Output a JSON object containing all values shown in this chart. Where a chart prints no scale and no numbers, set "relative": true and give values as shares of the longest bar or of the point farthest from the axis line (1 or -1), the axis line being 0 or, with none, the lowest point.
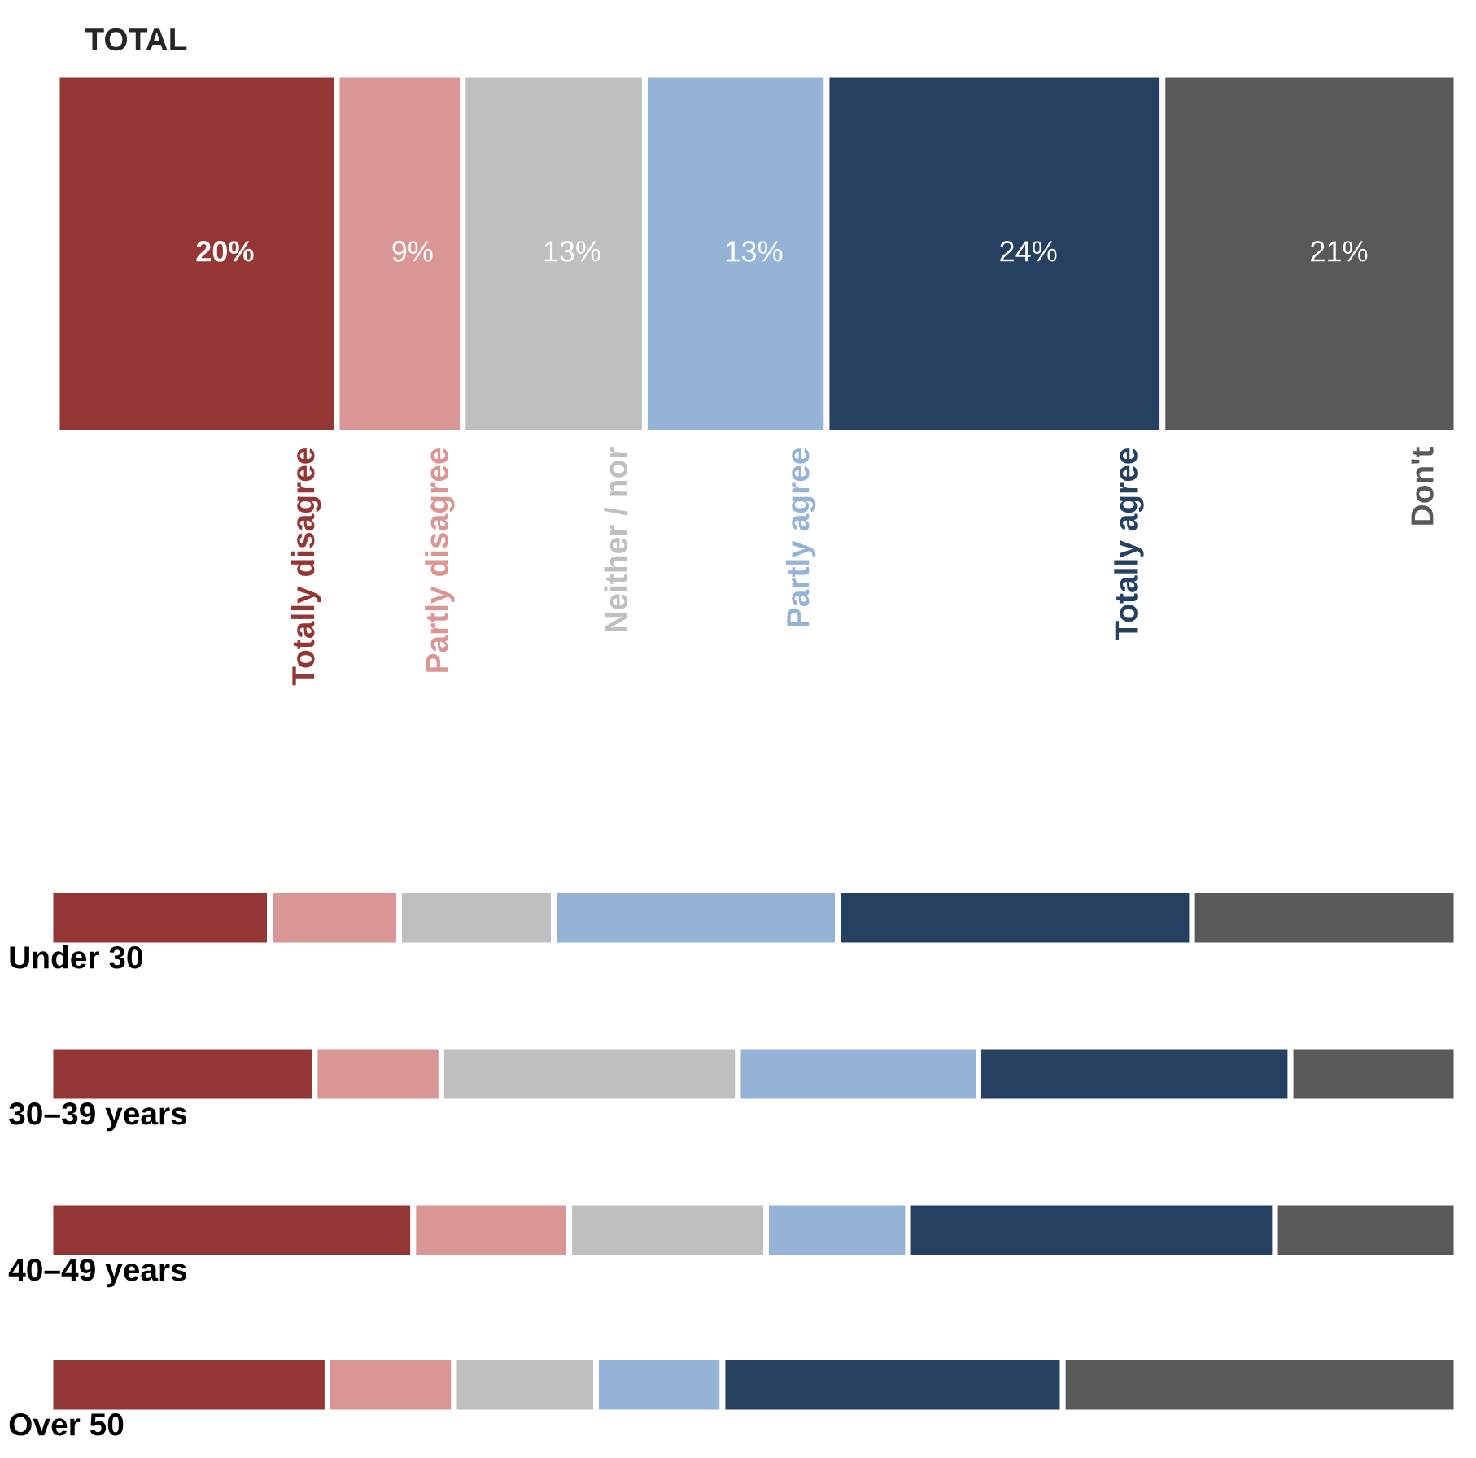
{
  "chart_data": [
    {
      "type": "bar",
      "title": "TOTAL",
      "orientation": "horizontal",
      "stacked": true,
      "tick_labels": false,
      "legend": false,
      "categories": [
        null
      ],
      "series": [
        {
          "name": "Totally disagree",
          "color": "#943634",
          "values": [
            20
          ],
          "value_labels": [
            "20%"
          ]
        },
        {
          "name": "Partly disagree",
          "color": "#da9694",
          "values": [
            9
          ],
          "value_labels": [
            "9%"
          ]
        },
        {
          "name": "Neither / nor",
          "color": "#bfbfbf",
          "values": [
            13
          ],
          "value_labels": [
            "13%"
          ]
        },
        {
          "name": "Partly agree",
          "color": "#95b3d7",
          "values": [
            13
          ],
          "value_labels": [
            "13%"
          ]
        },
        {
          "name": "Totally agree",
          "color": "#254061",
          "values": [
            24
          ],
          "value_labels": [
            "24%"
          ]
        },
        {
          "name": "Don't",
          "color": "#595959",
          "values": [
            21
          ],
          "value_labels": [
            "21%"
          ]
        }
      ]
    },
    {
      "type": "bar",
      "orientation": "horizontal",
      "stacked": true,
      "relative": true,
      "categories": [
        "Under 30"
      ],
      "series": [
        {
          "color": "#943634",
          "values": [
            0.156
          ]
        },
        {
          "color": "#da9694",
          "values": [
            0.092
          ]
        },
        {
          "color": "#bfbfbf",
          "values": [
            0.11
          ]
        },
        {
          "color": "#95b3d7",
          "values": [
            0.202
          ]
        },
        {
          "color": "#254061",
          "values": [
            0.252
          ]
        },
        {
          "color": "#595959",
          "values": [
            0.188
          ]
        }
      ]
    },
    {
      "type": "bar",
      "orientation": "horizontal",
      "stacked": true,
      "relative": true,
      "categories": [
        "30–39 years"
      ],
      "series": [
        {
          "color": "#943634",
          "values": [
            0.188
          ]
        },
        {
          "color": "#da9694",
          "values": [
            0.09
          ]
        },
        {
          "color": "#bfbfbf",
          "values": [
            0.211
          ]
        },
        {
          "color": "#95b3d7",
          "values": [
            0.171
          ]
        },
        {
          "color": "#254061",
          "values": [
            0.222
          ]
        },
        {
          "color": "#595959",
          "values": [
            0.118
          ]
        }
      ]
    },
    {
      "type": "bar",
      "orientation": "horizontal",
      "stacked": true,
      "relative": true,
      "categories": [
        "40–49 years"
      ],
      "series": [
        {
          "color": "#943634",
          "values": [
            0.258
          ]
        },
        {
          "color": "#da9694",
          "values": [
            0.111
          ]
        },
        {
          "color": "#bfbfbf",
          "values": [
            0.14
          ]
        },
        {
          "color": "#95b3d7",
          "values": [
            0.101
          ]
        },
        {
          "color": "#254061",
          "values": [
            0.261
          ]
        },
        {
          "color": "#595959",
          "values": [
            0.129
          ]
        }
      ]
    },
    {
      "type": "bar",
      "orientation": "horizontal",
      "stacked": true,
      "relative": true,
      "categories": [
        "Over 50"
      ],
      "series": [
        {
          "color": "#943634",
          "values": [
            0.197
          ]
        },
        {
          "color": "#da9694",
          "values": [
            0.09
          ]
        },
        {
          "color": "#bfbfbf",
          "values": [
            0.101
          ]
        },
        {
          "color": "#95b3d7",
          "values": [
            0.09
          ]
        },
        {
          "color": "#254061",
          "values": [
            0.242
          ]
        },
        {
          "color": "#595959",
          "values": [
            0.28
          ]
        }
      ]
    }
  ]
}
